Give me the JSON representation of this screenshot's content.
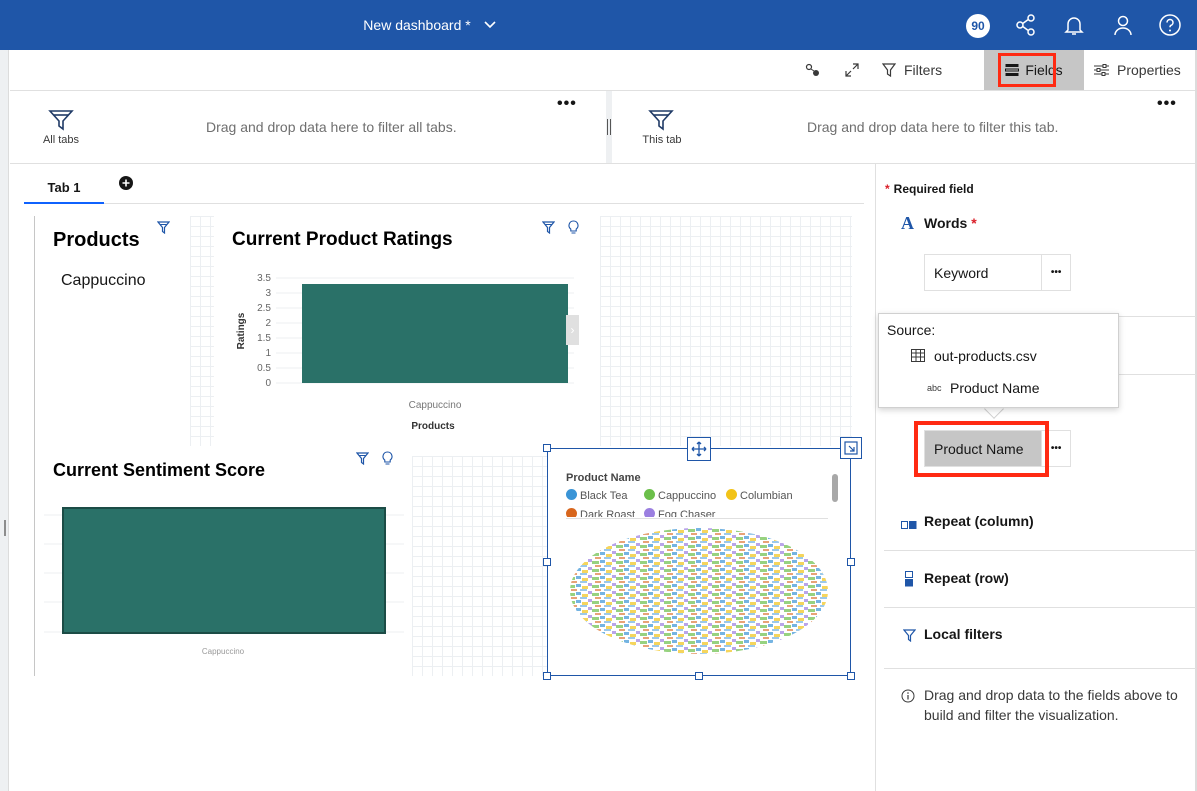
{
  "header": {
    "title": "New dashboard *",
    "badge_count": "90"
  },
  "toolbar": {
    "filters_label": "Filters",
    "fields_label": "Fields",
    "properties_label": "Properties"
  },
  "filter_bar": {
    "all_tabs_label": "All tabs",
    "all_tabs_text": "Drag and drop data here to filter all tabs.",
    "this_tab_label": "This tab",
    "this_tab_text": "Drag and drop data here to filter this tab."
  },
  "tabs": [
    {
      "label": "Tab 1"
    }
  ],
  "widgets": {
    "products": {
      "title": "Products",
      "value": "Cappuccino"
    },
    "ratings": {
      "title": "Current Product Ratings"
    },
    "sentiment": {
      "title": "Current Sentiment Score"
    },
    "wordcloud": {
      "legend_title": "Product Name",
      "legend_items": [
        {
          "label": "Black Tea",
          "color": "#3a94d6"
        },
        {
          "label": "Cappuccino",
          "color": "#6bbf4a"
        },
        {
          "label": "Columbian",
          "color": "#f2c318"
        },
        {
          "label": "Dark Roast",
          "color": "#d8661d"
        },
        {
          "label": "Fog Chaser",
          "color": "#9b7fe0"
        }
      ]
    }
  },
  "chart_data": [
    {
      "type": "bar",
      "title": "Current Product Ratings",
      "categories": [
        "Cappuccino"
      ],
      "values": [
        3.3
      ],
      "xlabel": "Products",
      "ylabel": "Ratings",
      "ylim": [
        0,
        3.5
      ],
      "yticks": [
        "3.5",
        "3",
        "2.5",
        "2",
        "1.5",
        "1",
        "0.5",
        "0"
      ],
      "color": "#2a7168"
    },
    {
      "type": "bar",
      "title": "Current Sentiment Score",
      "categories": [
        "Cappuccino"
      ],
      "color": "#2a7168"
    }
  ],
  "panel": {
    "required_label": "Required field",
    "words_label": "Words",
    "keyword_slot": "Keyword",
    "source_label": "Source:",
    "source_file": "out-products.csv",
    "source_type": "abc",
    "source_field": "Product Name",
    "product_slot": "Product Name",
    "repeat_column": "Repeat (column)",
    "repeat_row": "Repeat (row)",
    "local_filters": "Local filters",
    "hint": "Drag and drop data to the fields above to build and filter the visualization."
  },
  "colors": {
    "header_bg": "#1f56a8",
    "bar": "#2a7168",
    "highlight": "#ff2a12"
  }
}
